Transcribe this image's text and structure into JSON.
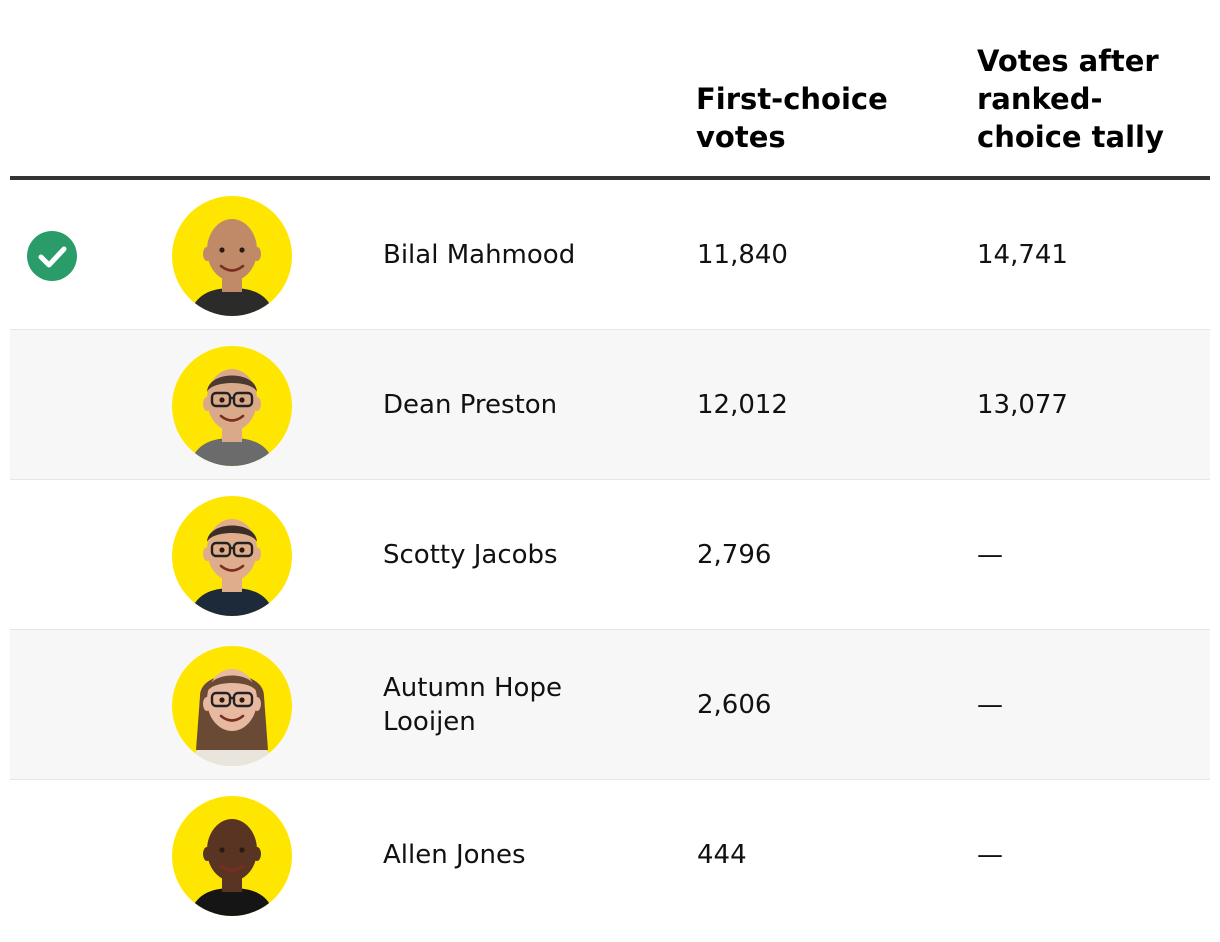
{
  "columns": {
    "first_choice": [
      "First-choice",
      "votes"
    ],
    "after_rcv": [
      "Votes after",
      "ranked-",
      "choice tally"
    ]
  },
  "candidates": [
    {
      "name": "Bilal Mahmood",
      "winner": true,
      "first_choice": "11,840",
      "after_rcv": "14,741",
      "avatar": {
        "skin": "#c08a68",
        "hair": "none",
        "glasses": false,
        "shirt": "#2b2b2b"
      }
    },
    {
      "name": "Dean Preston",
      "winner": false,
      "first_choice": "12,012",
      "after_rcv": "13,077",
      "avatar": {
        "skin": "#d9a98a",
        "hair": "#4a3a30",
        "glasses": true,
        "shirt": "#6b6b6b"
      }
    },
    {
      "name": "Scotty Jacobs",
      "winner": false,
      "first_choice": "2,796",
      "after_rcv": "—",
      "avatar": {
        "skin": "#e0ad8c",
        "hair": "#3a2e26",
        "glasses": true,
        "shirt": "#1d2a3a"
      }
    },
    {
      "name": "Autumn Hope Looijen",
      "winner": false,
      "first_choice": "2,606",
      "after_rcv": "—",
      "avatar": {
        "skin": "#e6b9a0",
        "hair": "#6b4a35",
        "glasses": true,
        "shirt": "#e9e4dc"
      }
    },
    {
      "name": "Allen Jones",
      "winner": false,
      "first_choice": "444",
      "after_rcv": "—",
      "avatar": {
        "skin": "#5a3422",
        "hair": "none",
        "glasses": false,
        "shirt": "#151515"
      }
    }
  ],
  "colors": {
    "winner_check": "#2a9c6a",
    "avatar_background": "#ffe600",
    "header_rule": "#333333",
    "row_shade": "#f7f7f7"
  }
}
